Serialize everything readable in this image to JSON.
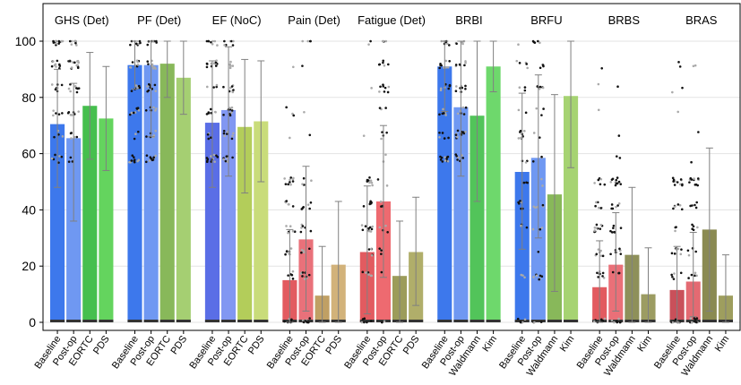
{
  "chart_data": {
    "type": "bar",
    "title": "",
    "ylabel": "",
    "xlabel": "",
    "ylim": [
      0,
      100
    ],
    "yticks": [
      0,
      20,
      40,
      60,
      80,
      100
    ],
    "grid": "horizontal",
    "error_bar_color": "#808080",
    "panels": [
      {
        "title": "GHS (Det)",
        "categories": [
          "Baseline",
          "Post-op",
          "EORTC",
          "PDS"
        ],
        "values": [
          70.5,
          65.5,
          77,
          72.5
        ],
        "err_low": [
          48,
          36,
          58,
          54
        ],
        "err_high": [
          90,
          85,
          96,
          91
        ],
        "colors": [
          "#3d78ec",
          "#6f98f2",
          "#46bf4e",
          "#64d45e"
        ],
        "has_points": [
          true,
          true,
          false,
          false
        ]
      },
      {
        "title": "PF (Det)",
        "categories": [
          "Baseline",
          "Post-op",
          "EORTC",
          "PDS"
        ],
        "values": [
          91.5,
          91.5,
          92,
          87
        ],
        "err_low": [
          83,
          66,
          80,
          74
        ],
        "err_high": [
          100,
          100,
          100,
          100
        ],
        "colors": [
          "#3d78ec",
          "#6f98f2",
          "#88b85a",
          "#a5cf72"
        ],
        "has_points": [
          true,
          true,
          false,
          false
        ]
      },
      {
        "title": "EF (NoC)",
        "categories": [
          "Baseline",
          "Post-op",
          "EORTC",
          "PDS"
        ],
        "values": [
          71,
          75.5,
          69.5,
          71.5
        ],
        "err_low": [
          48,
          52,
          46,
          50
        ],
        "err_high": [
          93,
          98,
          93.5,
          93
        ],
        "colors": [
          "#5a6ee6",
          "#8197f2",
          "#b3cd5a",
          "#c9dc7a"
        ],
        "has_points": [
          true,
          true,
          false,
          false
        ]
      },
      {
        "title": "Pain (Det)",
        "categories": [
          "Baseline",
          "Post-op",
          "EORTC",
          "PDS"
        ],
        "values": [
          15,
          29.5,
          9.5,
          20.5
        ],
        "err_low": [
          0,
          4,
          0,
          0
        ],
        "err_high": [
          33,
          55.5,
          27,
          43
        ],
        "colors": [
          "#e25b60",
          "#e9717a",
          "#c0a064",
          "#d2b27a"
        ],
        "has_points": [
          true,
          true,
          false,
          false
        ]
      },
      {
        "title": "Fatigue (Det)",
        "categories": [
          "Baseline",
          "Post-op",
          "EORTC",
          "PDS"
        ],
        "values": [
          25,
          43,
          16.5,
          25
        ],
        "err_low": [
          3,
          16,
          0,
          6
        ],
        "err_high": [
          48.5,
          70,
          36,
          44.5
        ],
        "colors": [
          "#e25b60",
          "#ee6a70",
          "#9c9c5a",
          "#b0ae6a"
        ],
        "has_points": [
          true,
          true,
          false,
          false
        ]
      },
      {
        "title": "BRBI",
        "categories": [
          "Baseline",
          "Post-op",
          "Waldmann",
          "Kim"
        ],
        "values": [
          91,
          76.5,
          73.5,
          91
        ],
        "err_low": [
          75,
          52,
          43,
          82
        ],
        "err_high": [
          100,
          100,
          100,
          100
        ],
        "colors": [
          "#3d78ec",
          "#6f98f2",
          "#52c45a",
          "#6ed86c"
        ],
        "has_points": [
          true,
          true,
          false,
          false
        ]
      },
      {
        "title": "BRFU",
        "categories": [
          "Baseline",
          "Post-op",
          "Waldmann",
          "Kim"
        ],
        "values": [
          53.5,
          58.5,
          45.5,
          80.5
        ],
        "err_low": [
          26,
          30,
          11,
          55
        ],
        "err_high": [
          81.5,
          88,
          81,
          100
        ],
        "colors": [
          "#3d78ec",
          "#6f98f2",
          "#88b85a",
          "#a6d372"
        ],
        "has_points": [
          true,
          true,
          false,
          false
        ]
      },
      {
        "title": "BRBS",
        "categories": [
          "Baseline",
          "Post-op",
          "Waldmann",
          "Kim"
        ],
        "values": [
          12.5,
          20.5,
          24,
          10
        ],
        "err_low": [
          0,
          4,
          0,
          0
        ],
        "err_high": [
          29,
          39,
          48,
          26.5
        ],
        "colors": [
          "#e25b60",
          "#ea7078",
          "#8e905a",
          "#9c9c62"
        ],
        "has_points": [
          true,
          true,
          false,
          false
        ]
      },
      {
        "title": "BRAS",
        "categories": [
          "Baseline",
          "Post-op",
          "Waldmann",
          "Kim"
        ],
        "values": [
          11.5,
          14.5,
          33,
          9.5
        ],
        "err_low": [
          0,
          2,
          4,
          0
        ],
        "err_high": [
          27,
          32,
          62,
          24
        ],
        "colors": [
          "#c9505a",
          "#e46a72",
          "#8a8a52",
          "#9e9e5e"
        ],
        "has_points": [
          true,
          true,
          false,
          false
        ]
      }
    ]
  }
}
